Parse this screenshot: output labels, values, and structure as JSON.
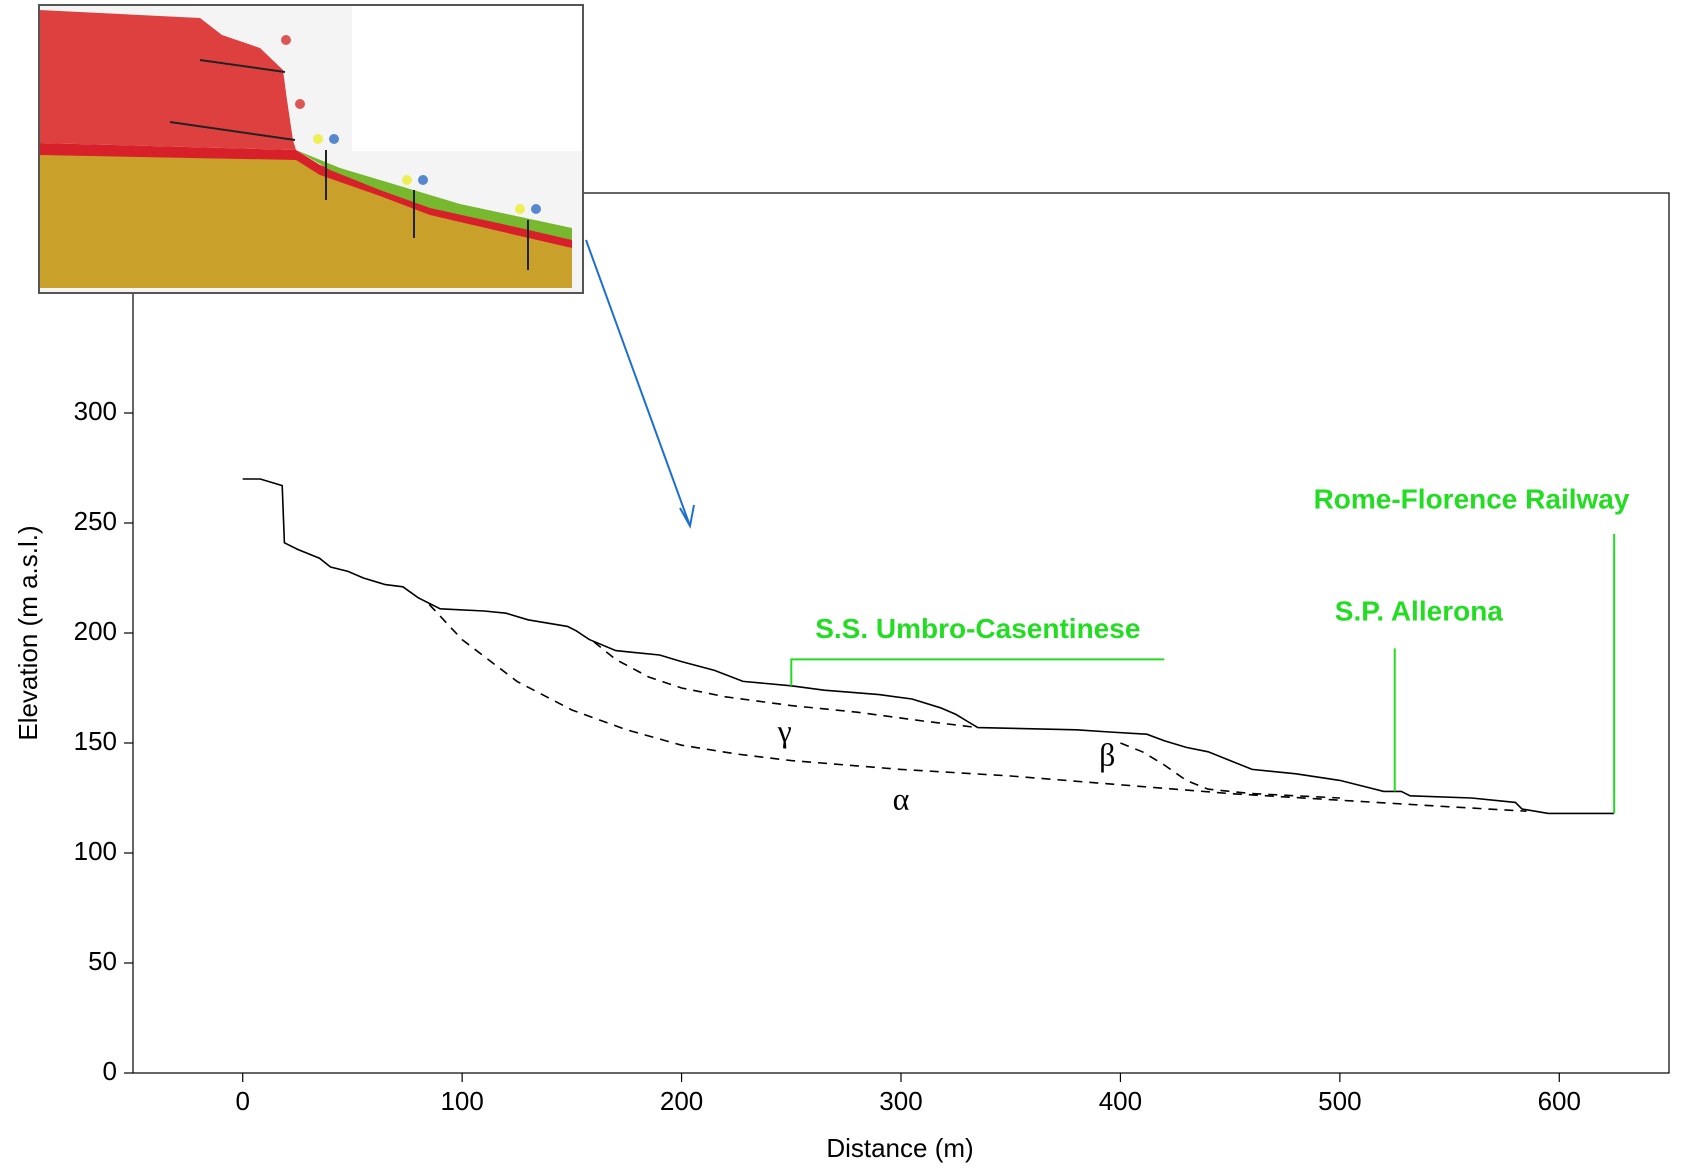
{
  "chart_data": {
    "type": "line",
    "x_label": "Distance (m)",
    "y_label": "Elevation  (m  a.s.l.)",
    "xlim": [
      -50,
      650
    ],
    "xticks": [
      0,
      100,
      200,
      300,
      400,
      500,
      600
    ],
    "ylim": [
      0,
      400
    ],
    "yticks": [
      0,
      50,
      100,
      150,
      200,
      250,
      300
    ],
    "series": [
      {
        "color": "#000000",
        "dashed": false,
        "x": [
          0,
          8,
          18,
          19,
          25,
          35,
          40,
          48,
          55,
          65,
          73,
          80,
          90,
          110,
          120,
          130,
          148,
          152,
          158,
          170,
          190,
          200,
          215,
          228,
          250,
          265,
          290,
          305,
          318,
          325,
          330,
          335,
          380,
          395,
          412,
          420,
          430,
          440,
          460,
          480,
          500,
          512,
          520,
          528,
          532,
          560,
          580,
          583,
          595,
          625
        ],
        "values": [
          270,
          270,
          267,
          241,
          238,
          234,
          230,
          228,
          225,
          222,
          221,
          216,
          211,
          210,
          209,
          206,
          203,
          201,
          197,
          192,
          190,
          187,
          183,
          178,
          176,
          174,
          172,
          170,
          166,
          163,
          160,
          157,
          156,
          155,
          154,
          151,
          148,
          146,
          138,
          136,
          133,
          130,
          128,
          128,
          126,
          125,
          123,
          120,
          118,
          118
        ]
      },
      {
        "name": "α",
        "color": "#000000",
        "dashed": true,
        "x": [
          85,
          100,
          125,
          150,
          175,
          200,
          225,
          250,
          300,
          350,
          400,
          450,
          500,
          550,
          585
        ],
        "values": [
          213,
          197,
          178,
          165,
          156,
          149,
          145,
          142,
          138,
          135,
          131,
          127,
          124,
          121,
          119
        ]
      },
      {
        "name": "β",
        "color": "#000000",
        "dashed": true,
        "x": [
          400,
          410,
          420,
          430,
          440,
          460,
          500
        ],
        "values": [
          150,
          146,
          140,
          133,
          129,
          127,
          125
        ]
      },
      {
        "name": "γ",
        "color": "#000000",
        "dashed": true,
        "x": [
          160,
          170,
          185,
          200,
          220,
          250,
          280,
          310,
          335
        ],
        "values": [
          196,
          188,
          180,
          175,
          171,
          167,
          164,
          160,
          157
        ]
      }
    ],
    "annotations": [
      {
        "text": "S.S. Umbro-Casentinese",
        "color": "#22dd22"
      },
      {
        "text": "S.P. Allerona",
        "color": "#22dd22"
      },
      {
        "text": "Rome-Florence Railway",
        "color": "#22dd22"
      }
    ]
  }
}
